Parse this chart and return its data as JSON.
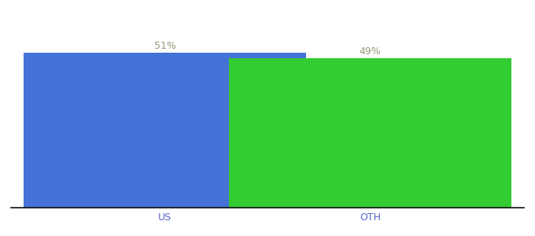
{
  "categories": [
    "US",
    "OTH"
  ],
  "values": [
    51,
    49
  ],
  "bar_colors": [
    "#4472d6",
    "#33cc33"
  ],
  "label_texts": [
    "51%",
    "49%"
  ],
  "bar_width": 0.55,
  "x_positions": [
    0.3,
    0.7
  ],
  "xlim": [
    0.0,
    1.0
  ],
  "ylim": [
    0,
    62
  ],
  "label_color": "#999977",
  "label_fontsize": 9,
  "tick_color": "#5566cc",
  "tick_fontsize": 9,
  "background_color": "#ffffff",
  "spine_color": "#111111"
}
